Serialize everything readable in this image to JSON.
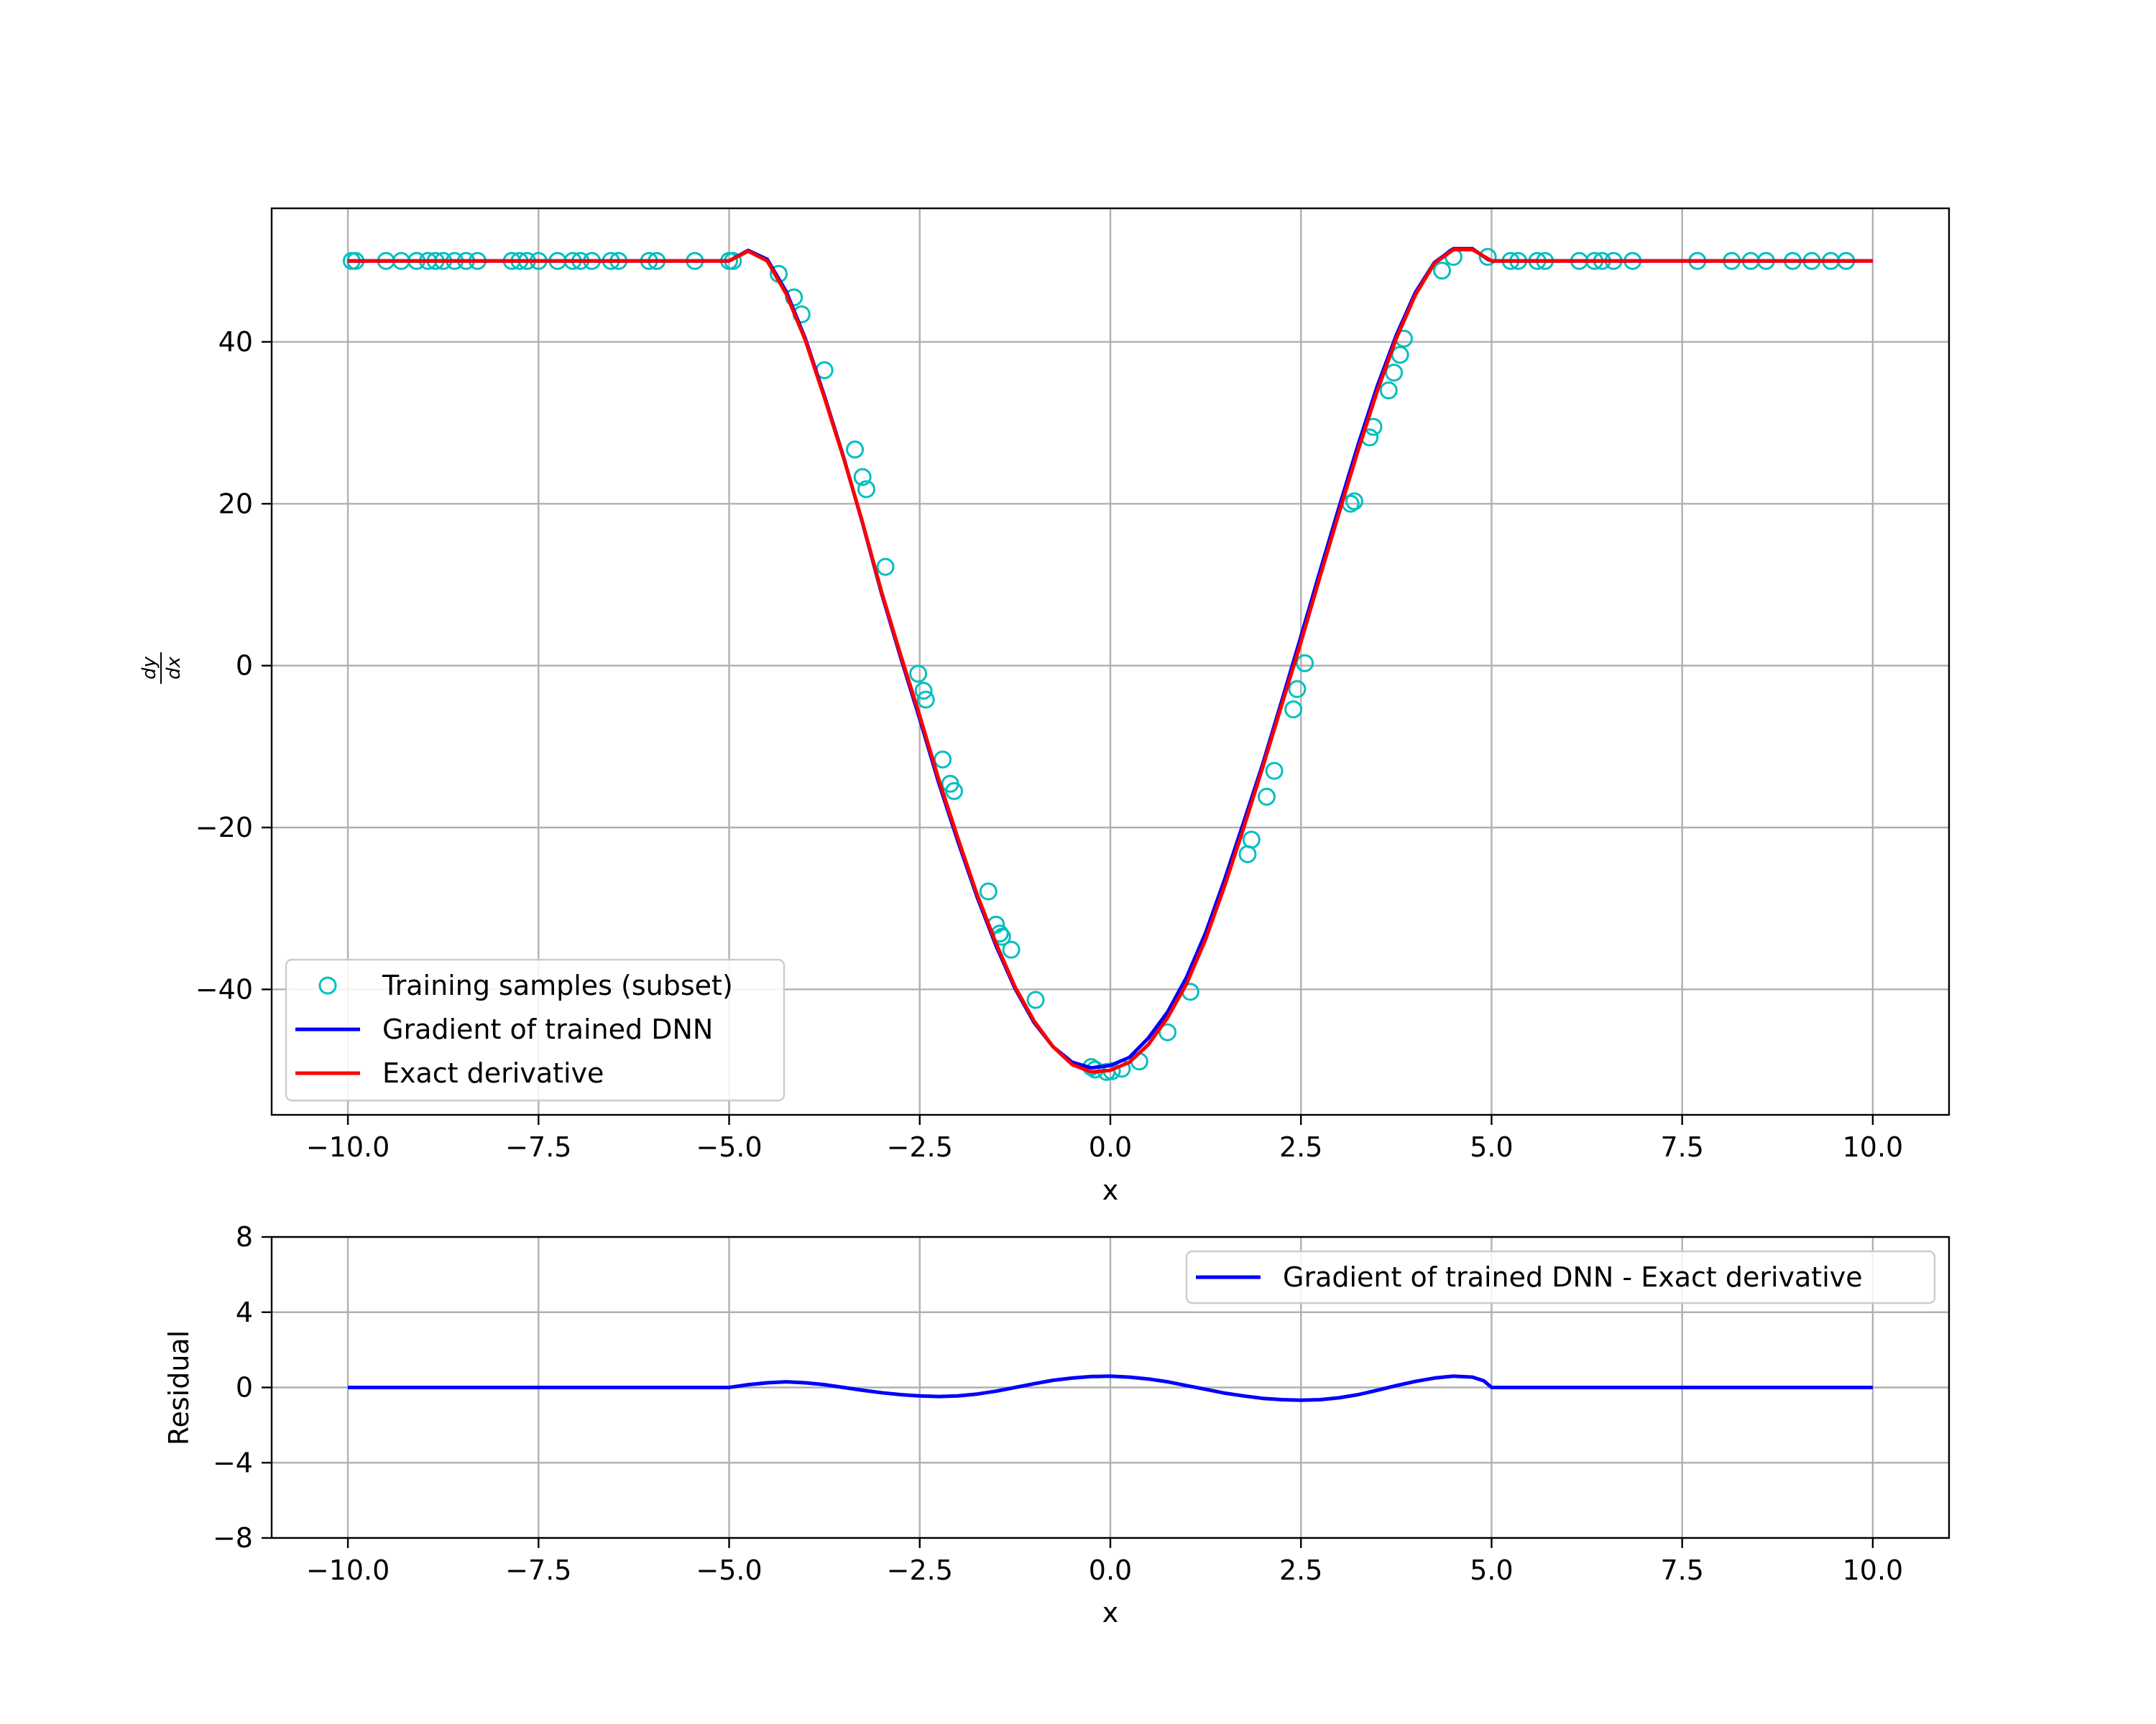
{
  "chart_data": [
    {
      "type": "line",
      "xlabel": "x",
      "ylabel": "dy/dx",
      "xlim": [
        -11,
        11
      ],
      "ylim": [
        -55.5,
        56.5
      ],
      "grid": true,
      "legend_placement": "lower-left",
      "x_ticks": [
        -10.0,
        -7.5,
        -5.0,
        -2.5,
        0.0,
        2.5,
        5.0,
        7.5,
        10.0
      ],
      "x_tick_labels": [
        "−10.0",
        "−7.5",
        "−5.0",
        "−2.5",
        "0.0",
        "2.5",
        "5.0",
        "7.5",
        "10.0"
      ],
      "y_ticks": [
        -40,
        -20,
        0,
        20,
        40
      ],
      "y_tick_labels": [
        "−40",
        "−20",
        "0",
        "20",
        "40"
      ],
      "colors": {
        "samples": "#00bfbf",
        "dnn": "#0000ff",
        "exact": "#ff0000"
      },
      "series": [
        {
          "name": "Training samples (subset)",
          "kind": "scatter",
          "x": [
            -9.95,
            -9.9,
            -9.5,
            -9.3,
            -9.1,
            -8.95,
            -8.85,
            -8.75,
            -8.6,
            -8.45,
            -8.3,
            -7.85,
            -7.75,
            -7.65,
            -7.5,
            -7.25,
            -7.05,
            -6.95,
            -6.8,
            -6.55,
            -6.45,
            -6.05,
            -5.95,
            -5.45,
            -5.0,
            -4.95,
            -4.35,
            -4.15,
            -4.05,
            -3.75,
            -3.35,
            -3.25,
            -3.2,
            -2.95,
            -2.52,
            -2.45,
            -2.42,
            -2.2,
            -2.1,
            -2.05,
            -1.6,
            -1.5,
            -1.45,
            -1.42,
            -1.3,
            -0.98,
            -0.25,
            -0.2,
            -0.05,
            0.02,
            0.15,
            0.38,
            0.75,
            1.05,
            1.8,
            1.85,
            2.05,
            2.15,
            2.4,
            2.45,
            2.55,
            3.15,
            3.2,
            3.4,
            3.45,
            3.65,
            3.72,
            3.8,
            3.85,
            4.35,
            4.5,
            4.95,
            5.25,
            5.35,
            5.6,
            5.7,
            6.15,
            6.35,
            6.45,
            6.6,
            6.85,
            7.7,
            8.15,
            8.4,
            8.6,
            8.95,
            9.2,
            9.45,
            9.65
          ],
          "y": [
            50.0,
            50.0,
            50.0,
            50.0,
            50.0,
            50.0,
            50.0,
            50.0,
            50.0,
            50.0,
            50.0,
            50.0,
            50.0,
            50.0,
            50.0,
            50.0,
            50.0,
            50.0,
            50.0,
            50.0,
            50.0,
            50.0,
            50.0,
            50.0,
            50.0,
            50.0,
            48.4,
            45.5,
            43.4,
            36.5,
            26.7,
            23.3,
            21.8,
            12.2,
            -1.0,
            -3.1,
            -4.2,
            -11.6,
            -14.6,
            -15.5,
            -27.9,
            -32.0,
            -33.1,
            -33.5,
            -35.1,
            -41.3,
            -49.6,
            -49.9,
            -50.2,
            -50.1,
            -49.8,
            -48.9,
            -45.3,
            -40.3,
            -23.3,
            -21.5,
            -16.2,
            -13.0,
            -5.4,
            -2.9,
            0.3,
            20.0,
            20.3,
            28.2,
            29.5,
            34.0,
            36.2,
            38.4,
            40.4,
            48.8,
            50.5,
            50.5,
            50.0,
            50.0,
            50.0,
            50.0,
            50.0,
            50.0,
            50.0,
            50.0,
            50.0,
            50.0,
            50.0,
            50.0,
            50.0,
            50.0,
            50.0,
            50.0,
            50.0
          ]
        },
        {
          "name": "Gradient of trained DNN",
          "kind": "line",
          "x": [
            -10.0,
            -5.0,
            -4.75,
            -4.5,
            -4.25,
            -4.0,
            -3.75,
            -3.5,
            -3.25,
            -3.0,
            -2.75,
            -2.5,
            -2.25,
            -2.0,
            -1.75,
            -1.5,
            -1.25,
            -1.0,
            -0.75,
            -0.5,
            -0.25,
            0.0,
            0.25,
            0.5,
            0.75,
            1.0,
            1.25,
            1.5,
            1.75,
            2.0,
            2.25,
            2.5,
            2.75,
            3.0,
            3.25,
            3.5,
            3.75,
            4.0,
            4.25,
            4.5,
            4.75,
            4.95,
            5.0,
            10.0
          ],
          "y": [
            50.0,
            50.0,
            51.3,
            50.2,
            46.2,
            40.4,
            33.3,
            25.8,
            17.6,
            8.9,
            1.0,
            -6.6,
            -14.5,
            -21.7,
            -28.5,
            -34.6,
            -39.9,
            -44.1,
            -47.1,
            -49.0,
            -49.7,
            -49.4,
            -48.4,
            -46.0,
            -42.8,
            -38.5,
            -33.0,
            -26.4,
            -19.3,
            -12.1,
            -4.3,
            3.6,
            11.7,
            19.6,
            27.3,
            34.5,
            40.8,
            46.1,
            49.8,
            51.5,
            51.5,
            50.2,
            50.0,
            50.0
          ]
        },
        {
          "name": "Exact derivative",
          "kind": "line",
          "x": [
            -10.0,
            -5.0,
            -4.75,
            -4.5,
            -4.25,
            -4.0,
            -3.75,
            -3.5,
            -3.25,
            -3.0,
            -2.75,
            -2.5,
            -2.25,
            -2.0,
            -1.75,
            -1.5,
            -1.25,
            -1.0,
            -0.75,
            -0.5,
            -0.25,
            0.0,
            0.25,
            0.5,
            0.75,
            1.0,
            1.25,
            1.5,
            1.75,
            2.0,
            2.25,
            2.5,
            2.75,
            3.0,
            3.25,
            3.5,
            3.75,
            4.0,
            4.25,
            4.5,
            4.75,
            5.0,
            10.0
          ],
          "y": [
            50.0,
            50.0,
            51.2,
            50.0,
            45.9,
            40.2,
            33.1,
            25.7,
            17.7,
            9.1,
            1.3,
            -6.2,
            -14.1,
            -21.3,
            -28.2,
            -34.3,
            -39.7,
            -43.9,
            -47.1,
            -49.3,
            -50.2,
            -50.0,
            -49.0,
            -46.8,
            -43.5,
            -39.3,
            -33.8,
            -27.2,
            -20.0,
            -12.5,
            -4.8,
            2.9,
            11.0,
            18.9,
            26.6,
            33.9,
            40.4,
            45.8,
            49.7,
            51.4,
            51.4,
            50.0,
            50.0
          ]
        }
      ]
    },
    {
      "type": "line",
      "xlabel": "x",
      "ylabel": "Residual",
      "xlim": [
        -11,
        11
      ],
      "ylim": [
        -8,
        8
      ],
      "grid": true,
      "legend_placement": "top-right",
      "x_ticks": [
        -10.0,
        -7.5,
        -5.0,
        -2.5,
        0.0,
        2.5,
        5.0,
        7.5,
        10.0
      ],
      "x_tick_labels": [
        "−10.0",
        "−7.5",
        "−5.0",
        "−2.5",
        "0.0",
        "2.5",
        "5.0",
        "7.5",
        "10.0"
      ],
      "y_ticks": [
        -8,
        -4,
        0,
        4,
        8
      ],
      "y_tick_labels": [
        "−8",
        "−4",
        "0",
        "4",
        "8"
      ],
      "colors": {
        "residual": "#0000ff"
      },
      "series": [
        {
          "name": "Gradient of trained DNN - Exact derivative",
          "kind": "line",
          "x": [
            -10.0,
            -5.0,
            -4.75,
            -4.5,
            -4.25,
            -4.0,
            -3.75,
            -3.5,
            -3.25,
            -3.0,
            -2.75,
            -2.5,
            -2.25,
            -2.0,
            -1.75,
            -1.5,
            -1.25,
            -1.0,
            -0.75,
            -0.5,
            -0.25,
            0.0,
            0.25,
            0.5,
            0.75,
            1.0,
            1.25,
            1.5,
            1.75,
            2.0,
            2.25,
            2.5,
            2.75,
            3.0,
            3.25,
            3.5,
            3.75,
            4.0,
            4.25,
            4.5,
            4.75,
            4.9,
            5.0,
            10.0
          ],
          "y": [
            0.0,
            0.0,
            0.15,
            0.25,
            0.3,
            0.25,
            0.15,
            0.0,
            -0.15,
            -0.28,
            -0.38,
            -0.45,
            -0.48,
            -0.45,
            -0.35,
            -0.2,
            0.0,
            0.2,
            0.38,
            0.5,
            0.58,
            0.6,
            0.55,
            0.45,
            0.3,
            0.1,
            -0.1,
            -0.3,
            -0.45,
            -0.58,
            -0.65,
            -0.68,
            -0.65,
            -0.55,
            -0.38,
            -0.15,
            0.1,
            0.32,
            0.5,
            0.6,
            0.55,
            0.35,
            0.0,
            0.0
          ]
        }
      ]
    }
  ]
}
